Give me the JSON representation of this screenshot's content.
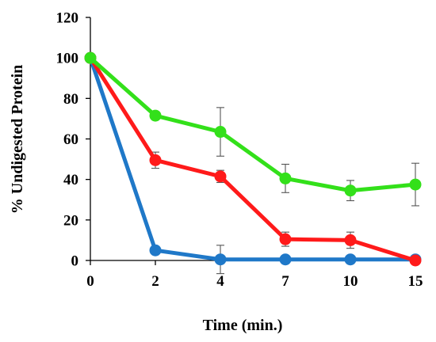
{
  "chart_data": {
    "type": "line",
    "title": "",
    "xlabel": "Time (min.)",
    "ylabel": "% Undigested Protein",
    "categories": [
      "0",
      "2",
      "4",
      "7",
      "10",
      "15"
    ],
    "ylim": [
      0,
      120
    ],
    "yticks": [
      0,
      20,
      40,
      60,
      80,
      100,
      120
    ],
    "grid": false,
    "legend": "none",
    "series": [
      {
        "color": "#1f78c8",
        "values": [
          100,
          5,
          0.5,
          0.5,
          0.5,
          0.5
        ],
        "errors": [
          0,
          0,
          7,
          0,
          0,
          0
        ]
      },
      {
        "color": "#ff1a1a",
        "values": [
          100,
          49.5,
          41.5,
          10.5,
          10,
          0
        ],
        "errors": [
          0,
          4,
          3,
          3.5,
          4,
          0
        ]
      },
      {
        "color": "#33e01a",
        "values": [
          100,
          71.5,
          63.5,
          40.5,
          34.5,
          37.5
        ],
        "errors": [
          0,
          2,
          12,
          7,
          5,
          10.5
        ]
      }
    ]
  }
}
